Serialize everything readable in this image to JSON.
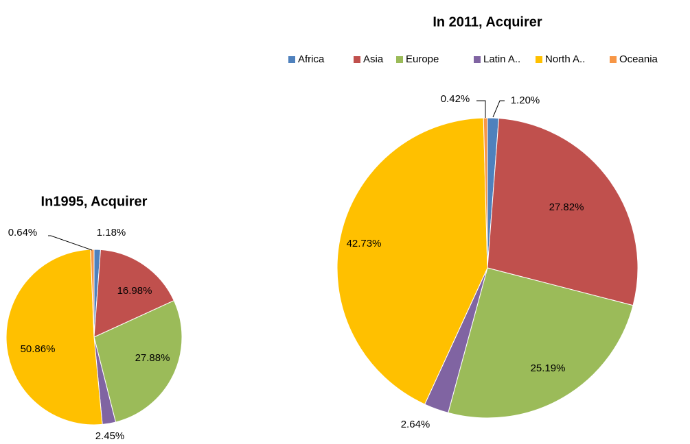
{
  "chart_data": [
    {
      "type": "pie",
      "title": "In1995, Acquirer",
      "categories": [
        "Africa",
        "Asia",
        "Europe",
        "Latin A..",
        "North A..",
        "Oceania"
      ],
      "values": [
        1.18,
        16.98,
        27.88,
        2.45,
        50.86,
        0.64
      ],
      "value_labels": [
        "1.18%",
        "16.98%",
        "27.88%",
        "2.45%",
        "50.86%",
        "0.64%"
      ],
      "colors": [
        "#4f81bd",
        "#c0504d",
        "#9bbb59",
        "#8064a2",
        "#ffc000",
        "#f79646"
      ],
      "legend": false
    },
    {
      "type": "pie",
      "title": "In 2011, Acquirer",
      "categories": [
        "Africa",
        "Asia",
        "Europe",
        "Latin A..",
        "North A..",
        "Oceania"
      ],
      "values": [
        1.2,
        27.82,
        25.19,
        2.64,
        42.73,
        0.42
      ],
      "value_labels": [
        "1.20%",
        "27.82%",
        "25.19%",
        "2.64%",
        "42.73%",
        "0.42%"
      ],
      "colors": [
        "#4f81bd",
        "#c0504d",
        "#9bbb59",
        "#8064a2",
        "#ffc000",
        "#f79646"
      ],
      "legend": "top"
    }
  ]
}
